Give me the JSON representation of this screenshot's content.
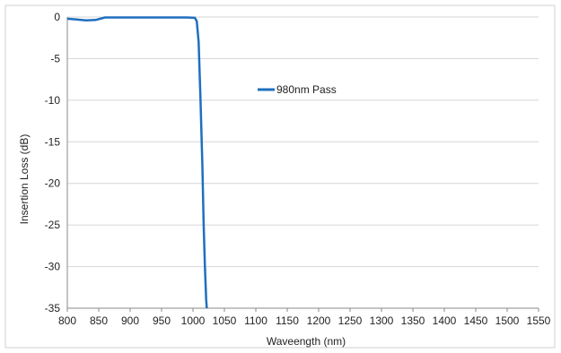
{
  "chart_data": {
    "type": "line",
    "title": "",
    "xlabel": "Waveength  (nm)",
    "ylabel": "Insertion Loss (dB)",
    "xlim": [
      800,
      1550
    ],
    "ylim": [
      -35,
      0
    ],
    "x_ticks": [
      "800",
      "850",
      "900",
      "950",
      "1000",
      "1050",
      "1100",
      "1150",
      "1200",
      "1250",
      "1300",
      "1350",
      "1400",
      "1450",
      "1500",
      "1550"
    ],
    "y_ticks": [
      "0",
      "-5",
      "-10",
      "-15",
      "-20",
      "-25",
      "-30",
      "-35"
    ],
    "grid": true,
    "legend_position": "inside-top-center",
    "series": [
      {
        "name": "980nm Pass",
        "color": "#1f6fbf",
        "x": [
          800,
          815,
          830,
          845,
          860,
          900,
          950,
          990,
          1003,
          1006,
          1009,
          1012,
          1015,
          1017,
          1019,
          1021,
          1022
        ],
        "y": [
          -0.2,
          -0.3,
          -0.4,
          -0.35,
          -0.05,
          -0.05,
          -0.05,
          -0.05,
          -0.1,
          -0.5,
          -3,
          -10,
          -18,
          -25,
          -30,
          -34,
          -35
        ]
      }
    ]
  }
}
